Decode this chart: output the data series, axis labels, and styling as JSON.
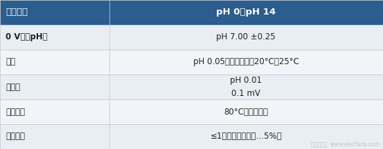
{
  "rows": [
    {
      "left": "测量范围",
      "right": "pH 0至pH 14",
      "header": true
    },
    {
      "left": "0 V时的pH值",
      "right": "pH 7.00 ±0.25",
      "header": false
    },
    {
      "left": "精度",
      "right": "pH 0.05，温度范围：20°C至25°C",
      "header": false
    },
    {
      "left": "分辨率",
      "right": "pH 0.01\n0.1 mV",
      "header": false
    },
    {
      "left": "工作温度",
      "right": "80°C（最大值）",
      "header": false
    },
    {
      "left": "反应时间",
      "right": "≤1秒（达到最终值…5%）",
      "header": false
    }
  ],
  "col_split": 0.285,
  "header_bg": "#2B5D8E",
  "header_text_color": "#FFFFFF",
  "row_bg_1": "#E9EEF4",
  "row_bg_2": "#F2F4F7",
  "row_bg_3": "#E9EEF4",
  "row_bg_4": "#F2F4F7",
  "row_bg_5": "#E9EEF4",
  "left_text_color": "#222222",
  "right_text_color": "#222222",
  "border_color": "#C0C8D0",
  "watermark_text": "电子发烧友  www.elecfans.com",
  "watermark_color": "#BBBBBB",
  "font_size_header": 9.5,
  "font_size_body": 8.5,
  "font_size_watermark": 5.5
}
